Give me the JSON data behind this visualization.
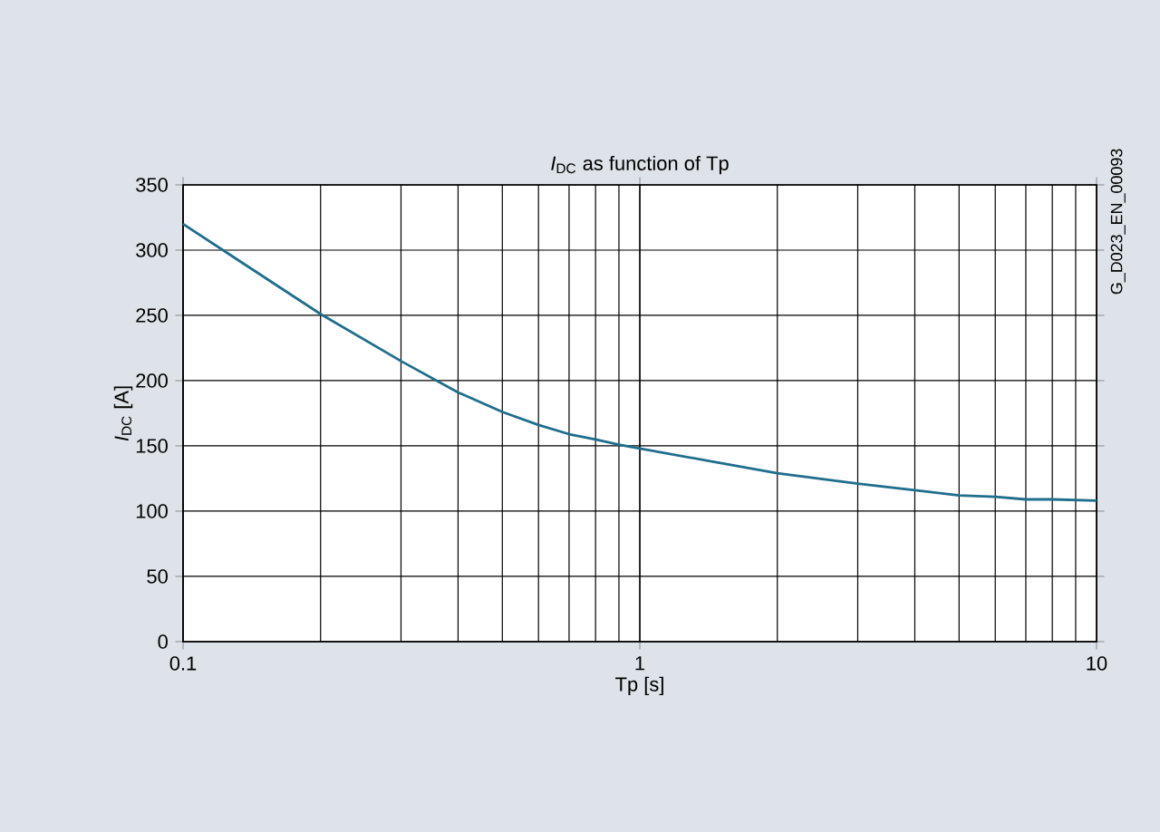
{
  "chart_data": {
    "type": "line",
    "title": "*I*$_{DC}$ as function of Tp",
    "xlabel": "Tp [s]",
    "ylabel": "*I*$_{DC}$ [A]",
    "annotations": [
      "G_D023_EN_00093"
    ],
    "x": [
      0.1,
      0.2,
      0.3,
      0.4,
      0.5,
      0.6,
      0.7,
      0.8,
      0.9,
      1,
      2,
      3,
      4,
      5,
      6,
      7,
      8,
      10
    ],
    "series": [
      {
        "color": "#1f6e8c",
        "values": [
          320,
          251,
          215,
          191,
          176,
          166,
          159,
          155,
          151,
          148,
          129,
          121,
          116,
          112,
          111,
          109,
          109,
          108
        ]
      }
    ],
    "log": "x",
    "grid": true,
    "marker": "none",
    "line_style": "solid",
    "xlim": [
      0.1,
      10
    ],
    "xticks": [
      0.1,
      1,
      10
    ],
    "ylim": [
      0,
      350
    ],
    "yticks": [
      0,
      50,
      100,
      150,
      200,
      250,
      300,
      350
    ]
  }
}
